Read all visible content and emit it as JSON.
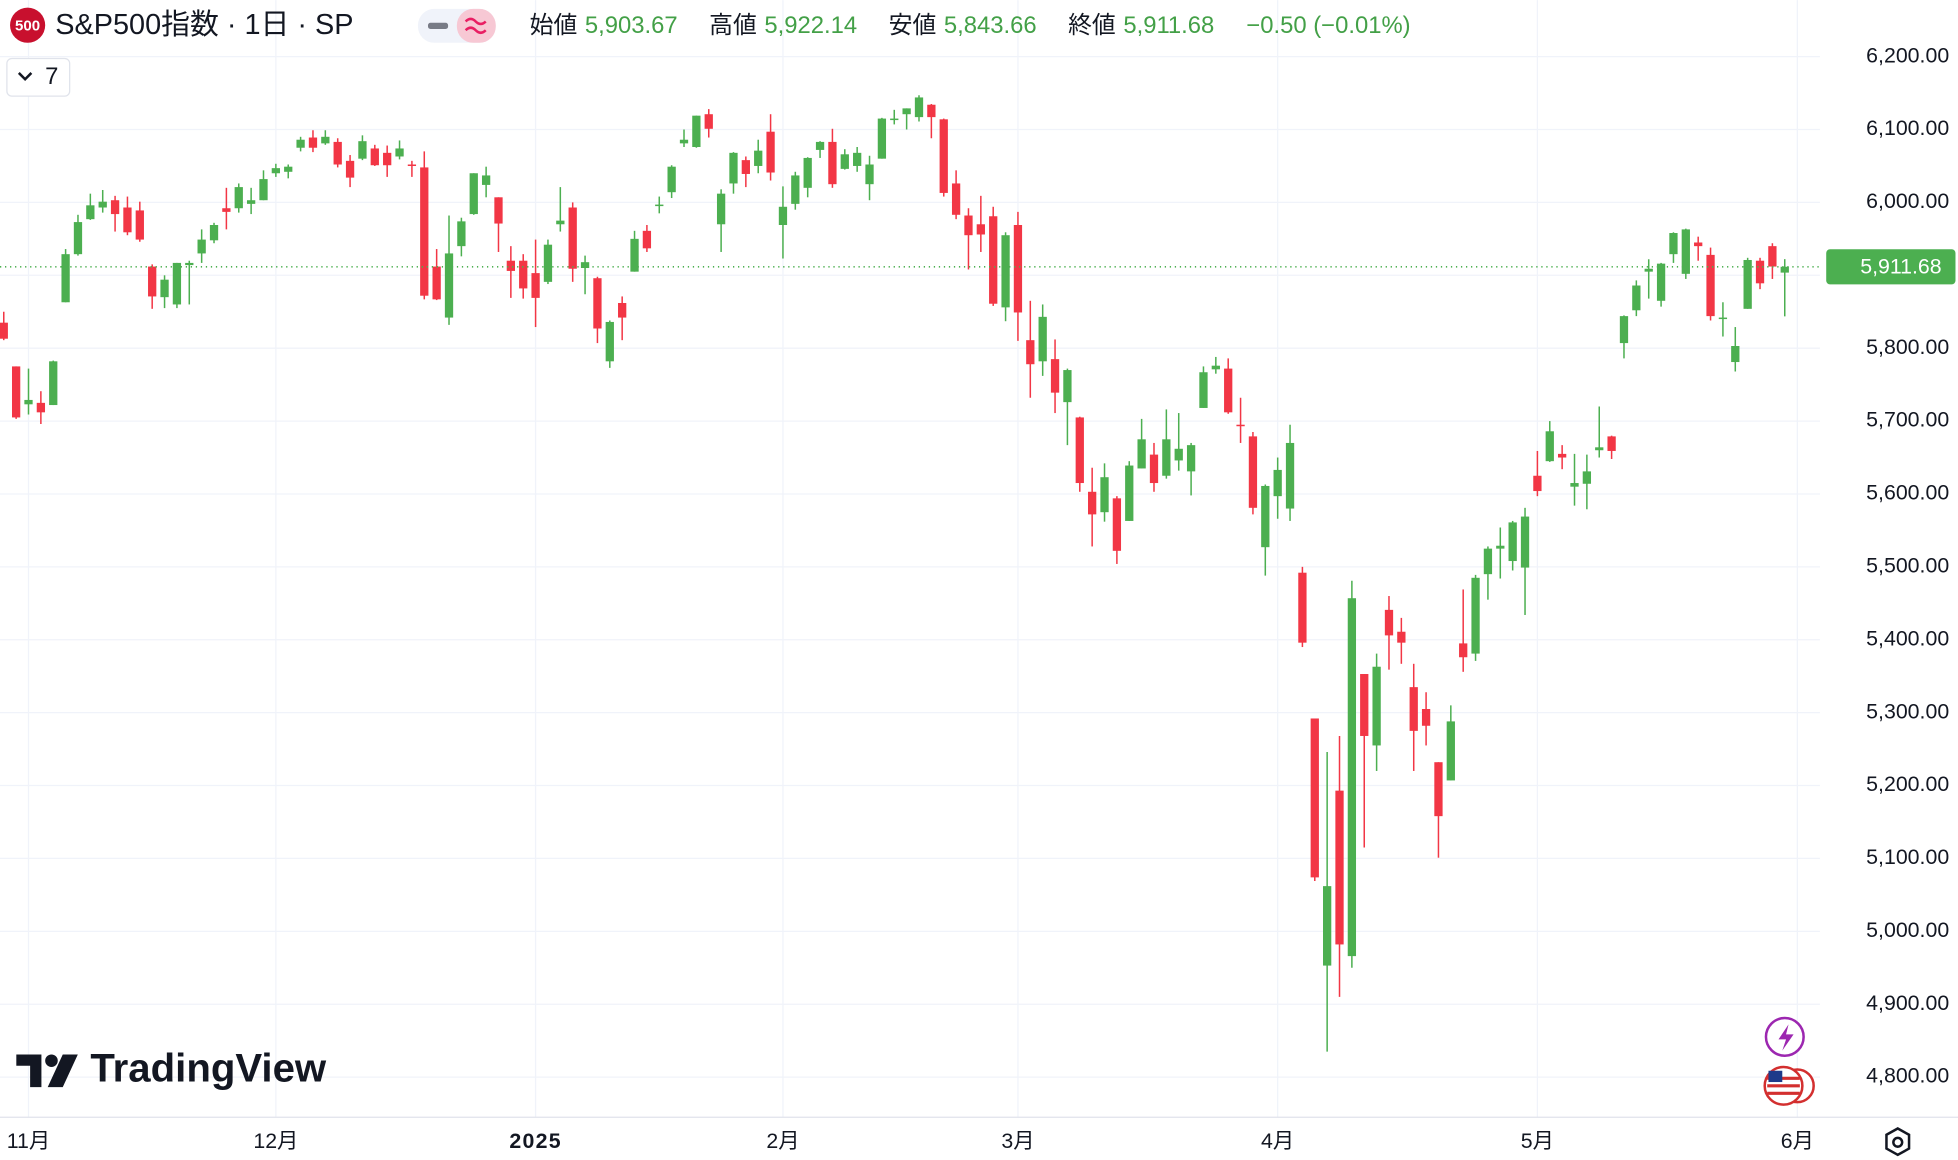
{
  "header": {
    "symbol_badge": "500",
    "title": "S&P500指数 · 1日 · SP",
    "open_label": "始値",
    "open": "5,903.67",
    "high_label": "高値",
    "high": "5,922.14",
    "low_label": "安値",
    "low": "5,843.66",
    "close_label": "終値",
    "close": "5,911.68",
    "change": "−0.50 (−0.01%)"
  },
  "indicator_count": "7",
  "logo": "TradingView",
  "last_price_label": "5,911.68",
  "next_month_label": "6月",
  "chart_data": {
    "type": "candlestick",
    "up_color": "#4caf50",
    "down_color": "#f23645",
    "grid": true,
    "categories": [
      null,
      null,
      "11月",
      null,
      null,
      null,
      null,
      null,
      null,
      null,
      null,
      null,
      null,
      null,
      null,
      null,
      null,
      null,
      null,
      null,
      null,
      null,
      "12月",
      null,
      null,
      null,
      null,
      null,
      null,
      null,
      null,
      null,
      null,
      null,
      null,
      null,
      null,
      null,
      null,
      null,
      null,
      null,
      null,
      "2025",
      null,
      null,
      null,
      null,
      null,
      null,
      null,
      null,
      null,
      null,
      null,
      null,
      null,
      null,
      null,
      null,
      null,
      null,
      null,
      "2月",
      null,
      null,
      null,
      null,
      null,
      null,
      null,
      null,
      null,
      null,
      null,
      null,
      null,
      null,
      null,
      null,
      null,
      null,
      "3月",
      null,
      null,
      null,
      null,
      null,
      null,
      null,
      null,
      null,
      null,
      null,
      null,
      null,
      null,
      null,
      null,
      null,
      null,
      null,
      null,
      "4月",
      null,
      null,
      null,
      null,
      null,
      null,
      null,
      null,
      null,
      null,
      null,
      null,
      null,
      null,
      null,
      null,
      null,
      null,
      null,
      null,
      "5月",
      null,
      null,
      null,
      null,
      null,
      null,
      null,
      null,
      null,
      null,
      null,
      null,
      null,
      null,
      null,
      null,
      null,
      null,
      null,
      null
    ],
    "open": [
      5835,
      5775,
      5723,
      5725,
      5722,
      5863,
      5929,
      5977,
      5993,
      6003,
      5993,
      5989,
      5912,
      5870,
      5860,
      5914,
      5930,
      5948,
      5992,
      5992,
      5998,
      6003,
      6040,
      6042,
      6075,
      6089,
      6081,
      6083,
      6057,
      6060,
      6074,
      6068,
      6063,
      6052,
      6048,
      5912,
      5842,
      5940,
      5984,
      6024,
      6007,
      5920,
      5920,
      5903,
      5891,
      5970,
      5993,
      5910,
      5896,
      5782,
      5862,
      5905,
      5961,
      5995,
      6014,
      6081,
      6076,
      6121,
      5970,
      6026,
      6058,
      6050,
      6097,
      5969,
      5998,
      6020,
      6072,
      6083,
      6046,
      6050,
      6025,
      6060,
      6114,
      6121,
      6117,
      6134,
      6114,
      6026,
      5982,
      5970,
      5981,
      5856,
      5969,
      5811,
      5782,
      5785,
      5726,
      5705,
      5603,
      5575,
      5594,
      5563,
      5635,
      5654,
      5625,
      5646,
      5631,
      5718,
      5771,
      5772,
      5695,
      5679,
      5527,
      5597,
      5580,
      5492,
      5292,
      4953,
      5193,
      4966,
      5353,
      5255,
      5441,
      5411,
      5335,
      5305,
      5232,
      5207,
      5395,
      5381,
      5490,
      5525,
      5508,
      5499,
      5625,
      5645,
      5655,
      5610,
      5614,
      5660,
      5679,
      5807,
      5852,
      5905,
      5865,
      5929,
      5902,
      5945,
      5928,
      5841,
      5781,
      5854,
      5920,
      5940,
      5903.67
    ],
    "high": [
      5850,
      5775,
      5772,
      5741,
      5783,
      5936,
      5983,
      6012,
      6017,
      6009,
      6008,
      6001,
      5915,
      5900,
      5917,
      5920,
      5963,
      5972,
      6020,
      6026,
      6020,
      6044,
      6053,
      6052,
      6090,
      6099,
      6099,
      6088,
      6065,
      6092,
      6079,
      6078,
      6085,
      6057,
      6070,
      5936,
      5982,
      5979,
      6040,
      6049,
      6007,
      5940,
      5929,
      5949,
      5949,
      6021,
      6000,
      5927,
      5898,
      5838,
      5871,
      5961,
      5969,
      6008,
      6051,
      6100,
      6119,
      6128,
      6018,
      6069,
      6063,
      6086,
      6121,
      6022,
      6042,
      6062,
      6084,
      6101,
      6073,
      6076,
      6064,
      6116,
      6127,
      6129,
      6147,
      6135,
      6115,
      6044,
      5992,
      6009,
      5994,
      5959,
      5987,
      5865,
      5860,
      5812,
      5772,
      5706,
      5636,
      5642,
      5597,
      5645,
      5703,
      5670,
      5716,
      5711,
      5670,
      5775,
      5788,
      5786,
      5732,
      5685,
      5613,
      5650,
      5695,
      5500,
      5292,
      5246,
      5268,
      5481,
      5353,
      5381,
      5460,
      5430,
      5367,
      5328,
      5232,
      5310,
      5469,
      5489,
      5528,
      5554,
      5563,
      5581,
      5659,
      5700,
      5667,
      5655,
      5654,
      5720,
      5680,
      5845,
      5893,
      5922,
      5917,
      5959,
      5964,
      5953,
      5938,
      5863,
      5829,
      5924,
      5924,
      5944,
      5922.14
    ],
    "low": [
      5811,
      5703,
      5709,
      5696,
      5722,
      5863,
      5927,
      5976,
      5986,
      5960,
      5955,
      5946,
      5854,
      5855,
      5855,
      5860,
      5917,
      5944,
      5963,
      5986,
      5984,
      6003,
      6035,
      6033,
      6070,
      6069,
      6079,
      6048,
      6021,
      6058,
      6050,
      6035,
      6059,
      6035,
      5867,
      5866,
      5832,
      5926,
      5983,
      6007,
      5932,
      5869,
      5868,
      5829,
      5888,
      5960,
      5891,
      5874,
      5807,
      5773,
      5811,
      5905,
      5932,
      5985,
      6006,
      6076,
      6075,
      6089,
      5932,
      6012,
      6021,
      6040,
      6030,
      5923,
      5990,
      6007,
      6061,
      6020,
      6045,
      6042,
      6003,
      6060,
      6107,
      6100,
      6111,
      6088,
      6008,
      5977,
      5908,
      5932,
      5858,
      5837,
      5810,
      5732,
      5762,
      5711,
      5667,
      5603,
      5528,
      5562,
      5504,
      5563,
      5635,
      5603,
      5621,
      5632,
      5598,
      5718,
      5765,
      5710,
      5670,
      5572,
      5488,
      5566,
      5563,
      5390,
      5069,
      4835,
      4910,
      4950,
      5115,
      5220,
      5359,
      5367,
      5220,
      5255,
      5101,
      5207,
      5356,
      5371,
      5455,
      5484,
      5495,
      5434,
      5597,
      5644,
      5634,
      5584,
      5579,
      5650,
      5648,
      5786,
      5844,
      5868,
      5857,
      5917,
      5895,
      5920,
      5838,
      5816,
      5768,
      5854,
      5881,
      5895,
      5843.66
    ],
    "close": [
      5813,
      5705,
      5729,
      5712,
      5782,
      5929,
      5973,
      5996,
      6001,
      5984,
      5959,
      5949,
      5871,
      5894,
      5917,
      5917,
      5949,
      5969,
      5987,
      6021,
      6003,
      6032,
      6047,
      6049,
      6086,
      6075,
      6090,
      6052,
      6034,
      6084,
      6051,
      6051,
      6074,
      6050,
      5872,
      5867,
      5930,
      5974,
      6040,
      6037,
      5971,
      5906,
      5882,
      5869,
      5942,
      5975,
      5909,
      5918,
      5827,
      5836,
      5842,
      5950,
      5937,
      5997,
      6049,
      6086,
      6119,
      6101,
      6012,
      6068,
      6039,
      6071,
      6041,
      5994,
      6037,
      6061,
      6083,
      6025,
      6066,
      6068,
      6052,
      6115,
      6115,
      6129,
      6144,
      6117,
      6013,
      5983,
      5955,
      5956,
      5861,
      5955,
      5849,
      5778,
      5843,
      5739,
      5770,
      5615,
      5572,
      5623,
      5522,
      5639,
      5675,
      5615,
      5675,
      5662,
      5667,
      5767,
      5776,
      5712,
      5693,
      5581,
      5611,
      5633,
      5670,
      5396,
      5074,
      5062,
      4982,
      5457,
      5268,
      5363,
      5406,
      5396,
      5275,
      5282,
      5158,
      5288,
      5376,
      5485,
      5525,
      5529,
      5561,
      5569,
      5604,
      5686,
      5650,
      5615,
      5631,
      5664,
      5659,
      5844,
      5886,
      5909,
      5916,
      5958,
      5963,
      5940,
      5844,
      5842,
      5803,
      5921,
      5889,
      5912,
      5911.68
    ],
    "ylim": [
      4745,
      6277.5
    ],
    "yticks": [
      {
        "value": 4800,
        "label": "4,800.00"
      },
      {
        "value": 4900,
        "label": "4,900.00"
      },
      {
        "value": 5000,
        "label": "5,000.00"
      },
      {
        "value": 5100,
        "label": "5,100.00"
      },
      {
        "value": 5200,
        "label": "5,200.00"
      },
      {
        "value": 5300,
        "label": "5,300.00"
      },
      {
        "value": 5400,
        "label": "5,400.00"
      },
      {
        "value": 5500,
        "label": "5,500.00"
      },
      {
        "value": 5600,
        "label": "5,600.00"
      },
      {
        "value": 5700,
        "label": "5,700.00"
      },
      {
        "value": 5800,
        "label": "5,800.00"
      },
      {
        "value": 5900,
        "label": "5,900.00"
      },
      {
        "value": 6000,
        "label": "6,000.00"
      },
      {
        "value": 6100,
        "label": "6,100.00"
      },
      {
        "value": 6200,
        "label": "6,200.00"
      }
    ]
  }
}
